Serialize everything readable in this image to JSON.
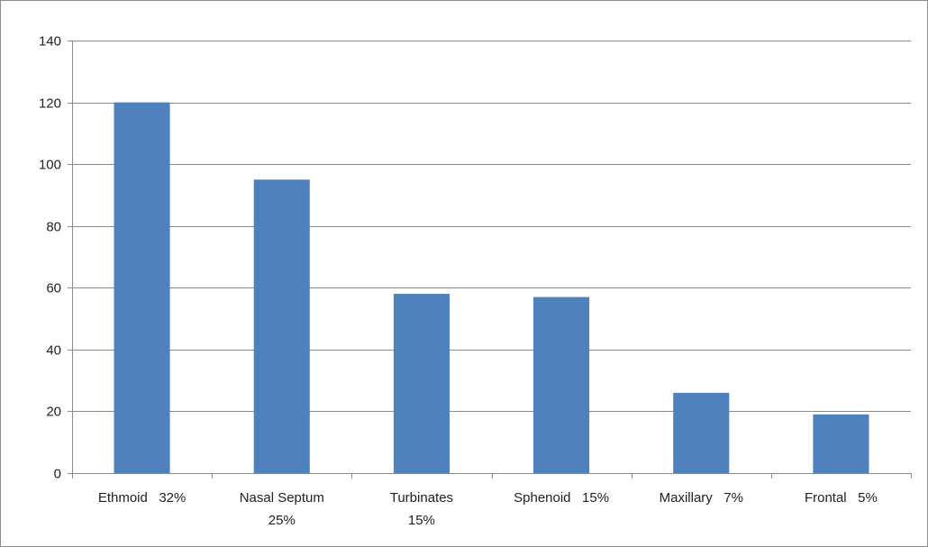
{
  "chart_data": {
    "type": "bar",
    "title": "",
    "xlabel": "",
    "ylabel": "",
    "categories": [
      [
        "Ethmoid   32%"
      ],
      [
        "Nasal Septum",
        "25%"
      ],
      [
        "Turbinates",
        "15%"
      ],
      [
        "Sphenoid   15%"
      ],
      [
        "Maxillary   7%"
      ],
      [
        "Frontal   5%"
      ]
    ],
    "values": [
      120,
      95,
      58,
      57,
      26,
      19
    ],
    "ylim": [
      0,
      140
    ],
    "yticks": [
      0,
      20,
      40,
      60,
      80,
      100,
      120,
      140
    ],
    "grid": true,
    "legend": "none",
    "bar_color": "#4f81bd",
    "grid_color": "#8a8a8a"
  }
}
